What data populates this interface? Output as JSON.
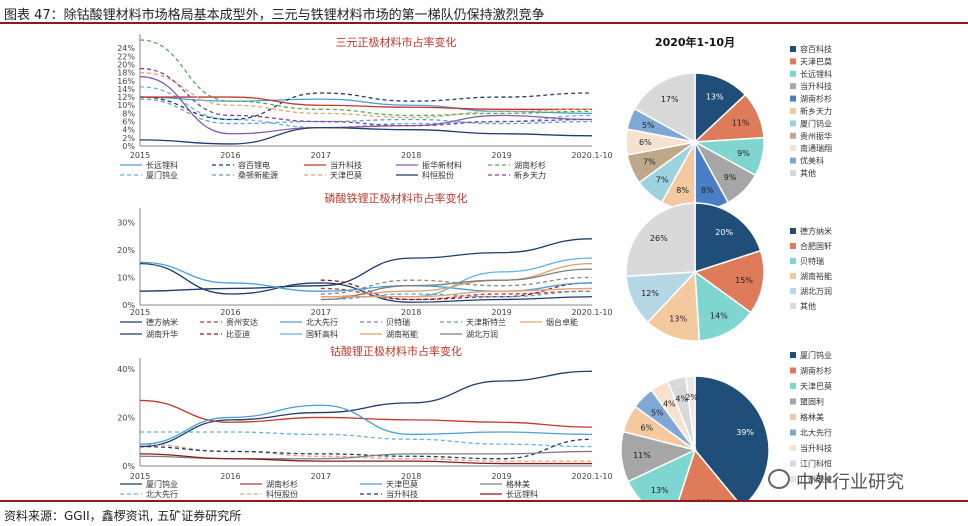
{
  "figure_title": "图表 47：除钴酸锂材料市场格局基本成型外，三元与铁锂材料市场的第一梯队仍保持激烈竞争",
  "source_note": "资料来源：GGII，鑫椤资讯, 五矿证券研究所",
  "watermark_text": "中外行业研究",
  "chart_data": [
    {
      "type": "line",
      "title": "三元正极材料市占率变化",
      "categories": [
        "2015",
        "2016",
        "2017",
        "2018",
        "2019",
        "2020.1-10"
      ],
      "ylim": [
        0,
        0.26
      ],
      "yticks": [
        "0%",
        "2%",
        "4%",
        "6%",
        "8%",
        "10%",
        "12%",
        "14%",
        "16%",
        "18%",
        "20%",
        "22%",
        "24%"
      ],
      "series": [
        {
          "name": "长远锂科",
          "color": "#4a9fd8",
          "dash": "solid",
          "values": [
            0.12,
            0.11,
            0.115,
            0.1,
            0.085,
            0.08
          ]
        },
        {
          "name": "厦门钨业",
          "color": "#5fb3e6",
          "dash": "dash",
          "values": [
            0.145,
            0.065,
            0.045,
            0.055,
            0.06,
            0.075
          ]
        },
        {
          "name": "容百锂电",
          "color": "#1f3b70",
          "dash": "dash",
          "values": [
            0.12,
            0.065,
            0.13,
            0.11,
            0.12,
            0.13
          ]
        },
        {
          "name": "桑顿新能源",
          "color": "#5aa0d0",
          "dash": "dash",
          "values": [
            0.115,
            0.055,
            0.06,
            0.065,
            0.055,
            0.06
          ]
        },
        {
          "name": "当升科技",
          "color": "#c0392b",
          "dash": "solid",
          "values": [
            0.12,
            0.12,
            0.1,
            0.095,
            0.09,
            0.09
          ]
        },
        {
          "name": "天津巴莫",
          "color": "#e8a070",
          "dash": "dash",
          "values": [
            0.18,
            0.1,
            0.08,
            0.07,
            0.085,
            0.09
          ]
        },
        {
          "name": "振华新材料",
          "color": "#7f5fa8",
          "dash": "solid",
          "values": [
            0.17,
            0.03,
            0.045,
            0.05,
            0.075,
            0.065
          ]
        },
        {
          "name": "科恒股份",
          "color": "#1f3b70",
          "dash": "solid",
          "values": [
            0.015,
            0.005,
            0.045,
            0.04,
            0.03,
            0.025
          ]
        },
        {
          "name": "湖南杉杉",
          "color": "#4caf50",
          "dash": "dash",
          "values": [
            0.26,
            0.11,
            0.09,
            0.075,
            0.08,
            0.085
          ]
        },
        {
          "name": "新乡天力",
          "color": "#8e3d8e",
          "dash": "dash",
          "values": [
            0.19,
            0.075,
            0.06,
            0.05,
            0.06,
            0.065
          ]
        }
      ]
    },
    {
      "type": "line",
      "title": "磷酸铁锂正极材料市占率变化",
      "categories": [
        "2015",
        "2016",
        "2017",
        "2018",
        "2019",
        "2020.1-10"
      ],
      "ylim": [
        0,
        0.33
      ],
      "yticks": [
        "0%",
        "10%",
        "20%",
        "30%"
      ],
      "series": [
        {
          "name": "德方纳米",
          "color": "#1f3b70",
          "dash": "solid",
          "values": [
            0.05,
            0.06,
            0.07,
            0.17,
            0.19,
            0.24
          ]
        },
        {
          "name": "湖南升华",
          "color": "#1f3b70",
          "dash": "solid",
          "values": [
            0.15,
            0.04,
            0.08,
            0.01,
            0.02,
            0.03
          ]
        },
        {
          "name": "贵州安达",
          "color": "#c0392b",
          "dash": "dash",
          "values": [
            null,
            null,
            0.06,
            0.02,
            0.04,
            0.05
          ]
        },
        {
          "name": "比亚迪",
          "color": "#8b1a1a",
          "dash": "dash",
          "values": [
            null,
            null,
            0.09,
            0.02,
            0.03,
            0.08
          ]
        },
        {
          "name": "北大先行",
          "color": "#4a9fd8",
          "dash": "solid",
          "values": [
            0.155,
            0.08,
            0.05,
            0.07,
            0.05,
            0.08
          ]
        },
        {
          "name": "国轩高科",
          "color": "#5fb3e6",
          "dash": "solid",
          "values": [
            null,
            null,
            0.03,
            0.03,
            0.12,
            0.17
          ]
        },
        {
          "name": "贝特瑞",
          "color": "#888888",
          "dash": "dash",
          "values": [
            null,
            null,
            0.04,
            0.09,
            0.07,
            0.1
          ]
        },
        {
          "name": "湖南裕能",
          "color": "#d9a06b",
          "dash": "solid",
          "values": [
            null,
            null,
            0.03,
            0.05,
            0.09,
            0.15
          ]
        },
        {
          "name": "天津斯特兰",
          "color": "#5aa0d0",
          "dash": "dash",
          "values": [
            null,
            null,
            0.02,
            0.04,
            0.03,
            0.05
          ]
        },
        {
          "name": "湖北万润",
          "color": "#7f7f7f",
          "dash": "solid",
          "values": [
            null,
            null,
            0.02,
            0.07,
            0.09,
            0.13
          ]
        },
        {
          "name": "烟台卓能",
          "color": "#e8a070",
          "dash": "solid",
          "values": [
            null,
            null,
            0.03,
            0.03,
            0.05,
            0.06
          ]
        }
      ]
    },
    {
      "type": "line",
      "title": "钴酸锂正极材料市占率变化",
      "categories": [
        "2015",
        "2016",
        "2017",
        "2018",
        "2019",
        "2020.1-10"
      ],
      "ylim": [
        0,
        0.42
      ],
      "yticks": [
        "0%",
        "20%",
        "40%"
      ],
      "series": [
        {
          "name": "厦门钨业",
          "color": "#1f3b70",
          "dash": "solid",
          "values": [
            0.08,
            0.19,
            0.22,
            0.26,
            0.35,
            0.39
          ]
        },
        {
          "name": "北大先行",
          "color": "#5fb3e6",
          "dash": "dash",
          "values": [
            0.14,
            0.14,
            0.13,
            0.11,
            0.09,
            0.08
          ]
        },
        {
          "name": "湖南杉杉",
          "color": "#c0392b",
          "dash": "solid",
          "values": [
            0.27,
            0.18,
            0.2,
            0.19,
            0.18,
            0.16
          ]
        },
        {
          "name": "科恒股份",
          "color": "#e8a070",
          "dash": "dash",
          "values": [
            0.09,
            0.06,
            0.04,
            0.03,
            0.02,
            0.02
          ]
        },
        {
          "name": "天津巴莫",
          "color": "#4a9fd8",
          "dash": "solid",
          "values": [
            0.09,
            0.2,
            0.25,
            0.13,
            0.14,
            0.13
          ]
        },
        {
          "name": "当升科技",
          "color": "#1f3b70",
          "dash": "dash",
          "values": [
            0.08,
            0.06,
            0.05,
            0.04,
            0.03,
            0.11
          ]
        },
        {
          "name": "格林美",
          "color": "#7f7f7f",
          "dash": "solid",
          "values": [
            0.04,
            0.03,
            0.03,
            0.05,
            0.05,
            0.06
          ]
        },
        {
          "name": "长远锂科",
          "color": "#8b1a1a",
          "dash": "solid",
          "values": [
            0.05,
            0.03,
            0.02,
            0.02,
            0.01,
            0.01
          ]
        }
      ]
    },
    {
      "type": "pie",
      "title": "2020年1-10月",
      "labels": [
        "容百科技",
        "天津巴莫",
        "长远锂科",
        "当升科技",
        "湖南杉杉",
        "新乡天力",
        "厦门钨业",
        "贵州振华",
        "南通瑞翔",
        "优美科",
        "其他"
      ],
      "values": [
        13,
        11,
        9,
        9,
        8,
        8,
        7,
        7,
        6,
        5,
        17
      ],
      "colors": [
        "#1f4e79",
        "#e07b5a",
        "#7fd6d0",
        "#a6a6a6",
        "#4a7fc8",
        "#f5c9a0",
        "#9dd3df",
        "#bfa88a",
        "#f7e2cf",
        "#7fa8d8",
        "#d9d9d9"
      ]
    },
    {
      "type": "pie",
      "title": "",
      "labels": [
        "德方纳米",
        "合肥国轩",
        "贝特瑞",
        "湖南裕能",
        "湖北万润",
        "其他"
      ],
      "values": [
        20,
        15,
        14,
        13,
        12,
        26
      ],
      "colors": [
        "#1f4e79",
        "#e07b5a",
        "#7fd6d0",
        "#f5c9a0",
        "#b6d8e6",
        "#d9d9d9"
      ]
    },
    {
      "type": "pie",
      "title": "",
      "labels": [
        "厦门钨业",
        "湖南杉杉",
        "天津巴莫",
        "盟固利",
        "格林美",
        "北大先行",
        "当升科技",
        "江门科恒",
        "广州融捷"
      ],
      "values": [
        39,
        16,
        13,
        11,
        6,
        5,
        4,
        4,
        2
      ],
      "colors": [
        "#1f4e79",
        "#e07b5a",
        "#7fd6d0",
        "#a6a6a6",
        "#f5c9a0",
        "#7fa8d8",
        "#f7e2cf",
        "#d9d9d9",
        "#e8e8e8"
      ]
    }
  ]
}
